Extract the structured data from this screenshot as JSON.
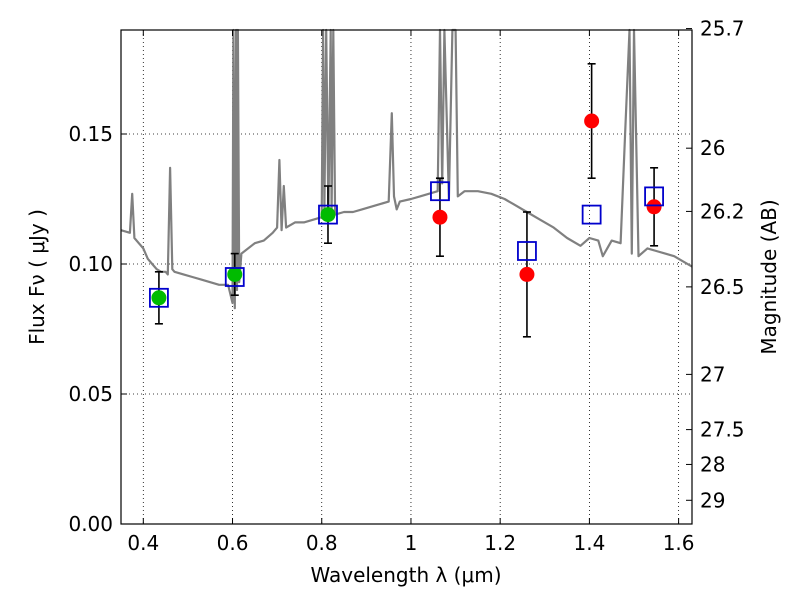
{
  "chart_data": {
    "type": "scatter",
    "xlabel": "Wavelength  λ (μm)",
    "ylabel": "Flux  Fν  ( μJy )",
    "ylabel_right": "Magnitude (AB)",
    "xlim": [
      0.35,
      1.63
    ],
    "ylim": [
      0.0,
      0.19
    ],
    "grid": true,
    "grid_style": "dotted",
    "x_ticks": [
      0.4,
      0.6,
      0.8,
      1.0,
      1.2,
      1.4,
      1.6
    ],
    "x_tick_labels": [
      "0.4",
      "0.6",
      "0.8",
      "1",
      "1.2",
      "1.4",
      "1.6"
    ],
    "y_ticks": [
      0.0,
      0.05,
      0.1,
      0.15
    ],
    "y_tick_labels": [
      "0.00",
      "0.05",
      "0.10",
      "0.15"
    ],
    "right_ticks": [
      {
        "mag": 25.7,
        "label": "25.7"
      },
      {
        "mag": 26,
        "label": "26"
      },
      {
        "mag": 26.2,
        "label": "26.2"
      },
      {
        "mag": 26.5,
        "label": "26.5"
      },
      {
        "mag": 27,
        "label": "27"
      },
      {
        "mag": 27.5,
        "label": "27.5"
      },
      {
        "mag": 28,
        "label": "28"
      },
      {
        "mag": 29,
        "label": "29"
      }
    ],
    "colors": {
      "model_line": "#808080",
      "observed_optical": "#00bb00",
      "observed_nir": "#ff0000",
      "model_photometry": "#0000cc",
      "errorbar": "#000000"
    },
    "series": [
      {
        "role": "model-spectrum",
        "x": [
          0.35,
          0.37,
          0.375,
          0.38,
          0.39,
          0.4,
          0.41,
          0.42,
          0.43,
          0.44,
          0.45,
          0.455,
          0.46,
          0.465,
          0.47,
          0.49,
          0.51,
          0.53,
          0.55,
          0.57,
          0.59,
          0.6,
          0.602,
          0.605,
          0.608,
          0.61,
          0.612,
          0.615,
          0.62,
          0.65,
          0.67,
          0.69,
          0.7,
          0.705,
          0.71,
          0.715,
          0.72,
          0.74,
          0.76,
          0.78,
          0.8,
          0.803,
          0.806,
          0.81,
          0.815,
          0.82,
          0.822,
          0.826,
          0.83,
          0.85,
          0.87,
          0.89,
          0.91,
          0.93,
          0.95,
          0.957,
          0.962,
          0.968,
          0.975,
          1.0,
          1.02,
          1.04,
          1.06,
          1.065,
          1.07,
          1.075,
          1.085,
          1.093,
          1.1,
          1.105,
          1.12,
          1.15,
          1.18,
          1.21,
          1.23,
          1.26,
          1.29,
          1.32,
          1.35,
          1.38,
          1.4,
          1.42,
          1.43,
          1.45,
          1.47,
          1.48,
          1.49,
          1.495,
          1.5,
          1.51,
          1.53,
          1.55,
          1.57,
          1.59,
          1.61,
          1.63
        ],
        "y": [
          0.113,
          0.112,
          0.127,
          0.11,
          0.108,
          0.106,
          0.102,
          0.1,
          0.098,
          0.097,
          0.097,
          0.096,
          0.137,
          0.098,
          0.097,
          0.096,
          0.095,
          0.094,
          0.093,
          0.092,
          0.092,
          0.085,
          0.19,
          0.083,
          0.19,
          0.09,
          0.19,
          0.093,
          0.104,
          0.108,
          0.109,
          0.112,
          0.114,
          0.14,
          0.113,
          0.13,
          0.114,
          0.116,
          0.116,
          0.117,
          0.118,
          0.19,
          0.121,
          0.19,
          0.119,
          0.19,
          0.12,
          0.19,
          0.119,
          0.12,
          0.12,
          0.121,
          0.122,
          0.123,
          0.124,
          0.158,
          0.126,
          0.121,
          0.124,
          0.125,
          0.126,
          0.127,
          0.128,
          0.19,
          0.131,
          0.19,
          0.125,
          0.19,
          0.19,
          0.126,
          0.128,
          0.128,
          0.127,
          0.125,
          0.123,
          0.12,
          0.117,
          0.114,
          0.11,
          0.107,
          0.11,
          0.109,
          0.103,
          0.109,
          0.108,
          0.15,
          0.19,
          0.104,
          0.19,
          0.103,
          0.106,
          0.105,
          0.104,
          0.103,
          0.101,
          0.099
        ]
      },
      {
        "role": "observed-optical",
        "points": [
          {
            "x": 0.435,
            "y": 0.087,
            "yerr": 0.01
          },
          {
            "x": 0.605,
            "y": 0.096,
            "yerr": 0.008
          },
          {
            "x": 0.814,
            "y": 0.119,
            "yerr": 0.011
          }
        ]
      },
      {
        "role": "observed-nir",
        "points": [
          {
            "x": 1.065,
            "y": 0.118,
            "yerr": 0.015
          },
          {
            "x": 1.26,
            "y": 0.096,
            "yerr": 0.024
          },
          {
            "x": 1.405,
            "y": 0.155,
            "yerr": 0.022
          },
          {
            "x": 1.545,
            "y": 0.122,
            "yerr": 0.015
          }
        ]
      },
      {
        "role": "model-photometry",
        "points": [
          {
            "x": 0.435,
            "y": 0.087
          },
          {
            "x": 0.605,
            "y": 0.095
          },
          {
            "x": 0.814,
            "y": 0.119
          },
          {
            "x": 1.065,
            "y": 0.128
          },
          {
            "x": 1.26,
            "y": 0.105
          },
          {
            "x": 1.405,
            "y": 0.119
          },
          {
            "x": 1.545,
            "y": 0.126
          }
        ]
      }
    ]
  }
}
